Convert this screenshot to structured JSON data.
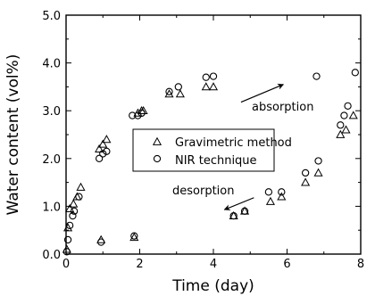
{
  "chart_data": {
    "type": "scatter",
    "xlabel": "Time (day)",
    "ylabel": "Water content (vol%)",
    "xlim": [
      0,
      8
    ],
    "ylim": [
      0,
      5
    ],
    "xticks": [
      0,
      2,
      4,
      6,
      8
    ],
    "yticks": [
      0,
      1,
      2,
      3,
      4,
      5
    ],
    "xtick_labels": [
      "0",
      "2",
      "4",
      "6",
      "8"
    ],
    "ytick_labels": [
      "0.0",
      "1.0",
      "2.0",
      "3.0",
      "4.0",
      "5.0"
    ],
    "grid": false,
    "legend": {
      "position": "center",
      "entries": [
        {
          "label": "Gravimetric method",
          "marker": "triangle"
        },
        {
          "label": "NIR technique",
          "marker": "circle"
        }
      ]
    },
    "annotations": [
      {
        "text": "absorption",
        "arrow_from": [
          4.75,
          3.18
        ],
        "arrow_to": [
          5.9,
          3.55
        ]
      },
      {
        "text": "desorption",
        "arrow_from": [
          5.1,
          1.18
        ],
        "arrow_to": [
          4.3,
          0.93
        ]
      }
    ],
    "series": [
      {
        "name": "Gravimetric method",
        "marker": "triangle",
        "points": [
          [
            0.02,
            0.1
          ],
          [
            0.05,
            0.55
          ],
          [
            0.1,
            0.95
          ],
          [
            0.2,
            1.05
          ],
          [
            0.3,
            1.2
          ],
          [
            0.4,
            1.4
          ],
          [
            0.9,
            2.2
          ],
          [
            1.0,
            2.3
          ],
          [
            1.1,
            2.4
          ],
          [
            1.95,
            2.95
          ],
          [
            2.05,
            3.0
          ],
          [
            2.1,
            3.0
          ],
          [
            2.8,
            3.35
          ],
          [
            3.1,
            3.35
          ],
          [
            3.8,
            3.5
          ],
          [
            4.0,
            3.5
          ],
          [
            0.95,
            0.3
          ],
          [
            1.85,
            0.35
          ],
          [
            4.55,
            0.8
          ],
          [
            4.85,
            0.9
          ],
          [
            5.55,
            1.1
          ],
          [
            5.85,
            1.2
          ],
          [
            6.5,
            1.5
          ],
          [
            6.85,
            1.7
          ],
          [
            7.45,
            2.5
          ],
          [
            7.6,
            2.6
          ],
          [
            7.8,
            2.9
          ]
        ]
      },
      {
        "name": "NIR technique",
        "marker": "circle",
        "points": [
          [
            0.02,
            0.05
          ],
          [
            0.05,
            0.3
          ],
          [
            0.1,
            0.6
          ],
          [
            0.18,
            0.8
          ],
          [
            0.22,
            0.9
          ],
          [
            0.35,
            1.2
          ],
          [
            0.9,
            2.0
          ],
          [
            1.0,
            2.1
          ],
          [
            1.1,
            2.15
          ],
          [
            1.8,
            2.9
          ],
          [
            1.95,
            2.9
          ],
          [
            2.05,
            2.95
          ],
          [
            2.8,
            3.4
          ],
          [
            3.05,
            3.5
          ],
          [
            3.8,
            3.7
          ],
          [
            4.0,
            3.72
          ],
          [
            0.95,
            0.25
          ],
          [
            1.85,
            0.38
          ],
          [
            4.55,
            0.8
          ],
          [
            4.85,
            0.9
          ],
          [
            5.5,
            1.3
          ],
          [
            5.85,
            1.3
          ],
          [
            6.5,
            1.7
          ],
          [
            6.85,
            1.95
          ],
          [
            6.8,
            3.72
          ],
          [
            7.45,
            2.7
          ],
          [
            7.55,
            2.9
          ],
          [
            7.65,
            3.1
          ],
          [
            7.85,
            3.8
          ]
        ]
      }
    ]
  }
}
